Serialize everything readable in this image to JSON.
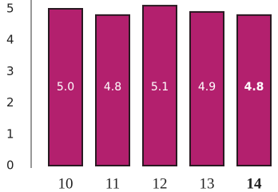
{
  "chart_data": {
    "type": "bar",
    "categories": [
      "10",
      "11",
      "12",
      "13",
      "14"
    ],
    "values": [
      5.0,
      4.8,
      5.1,
      4.9,
      4.8
    ],
    "value_labels": [
      "5.0",
      "4.8",
      "5.1",
      "4.9",
      "4.8"
    ],
    "color": "#b3206e",
    "ylim": [
      0,
      5
    ],
    "yticks": [
      0,
      1,
      2,
      3,
      4,
      5
    ],
    "grid": false,
    "highlight_index": 4
  }
}
